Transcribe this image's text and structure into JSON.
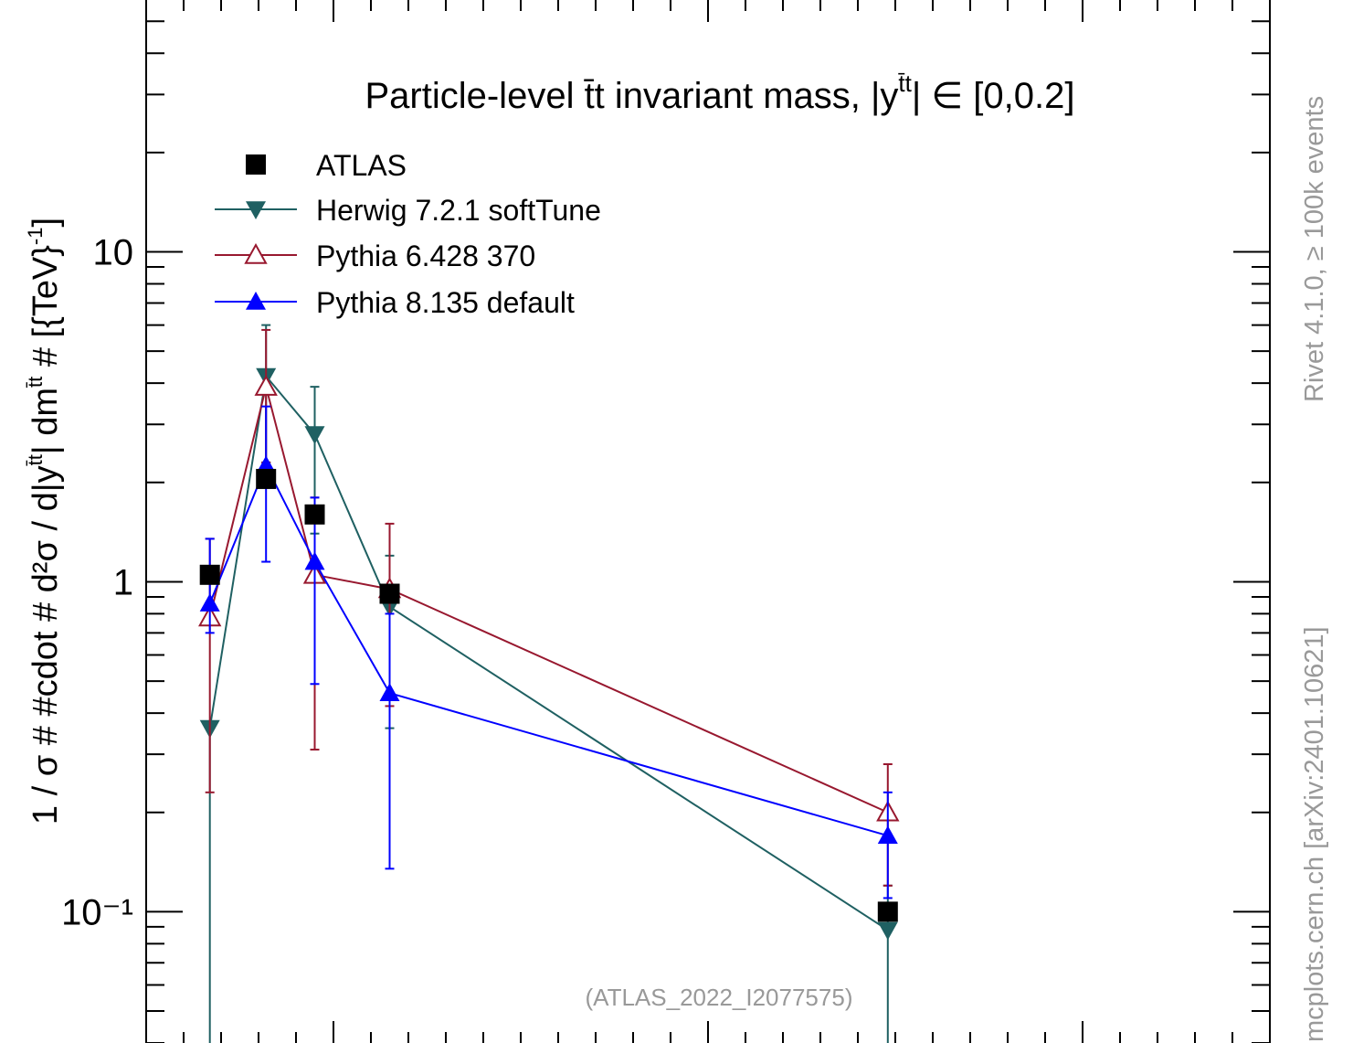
{
  "chart_data": {
    "type": "scatter",
    "title_main": "Particle-level t̄t invariant mass, |y",
    "title_sup": "t̄t",
    "title_end": "| ∈ [0,0.2]",
    "ylabel_main": "1 / σ # #cdot # d²σ / d|y",
    "ylabel_sup1": "t̄t",
    "ylabel_mid": "| dm",
    "ylabel_sup2": "t̄t",
    "ylabel_end": " # [{TeV}",
    "ylabel_sup3": "-1",
    "ylabel_close": "]",
    "yscale": "log",
    "ylim": [
      0.04,
      58
    ],
    "xlim": [
      0.0,
      3.0
    ],
    "ytick_labels": [
      "10⁻¹",
      "1",
      "10"
    ],
    "y_major_ticks": [
      0.1,
      1,
      10
    ],
    "x_major_ticks": [
      0.5,
      1.5,
      2.5
    ],
    "analysis_label": "(ATLAS_2022_I2077575)",
    "side_label_top": "Rivet 4.1.0, ≥ 100k events",
    "side_label_bottom": "mcplots.cern.ch [arXiv:2401.10621]",
    "colors": {
      "atlas": "#000000",
      "herwig": "#1f6062",
      "pythia6": "#98182f",
      "pythia8": "#0000ff",
      "axis": "#000000",
      "watermark": "#999999"
    },
    "series": [
      {
        "name": "ATLAS",
        "marker": "square",
        "line": false,
        "points": [
          {
            "x": 0.17,
            "y": 1.05
          },
          {
            "x": 0.32,
            "y": 2.05
          },
          {
            "x": 0.45,
            "y": 1.6
          },
          {
            "x": 0.65,
            "y": 0.92
          },
          {
            "x": 1.98,
            "y": 0.1
          }
        ]
      },
      {
        "name": "Herwig 7.2.1 softTune",
        "marker": "triangle-down",
        "line": true,
        "points": [
          {
            "x": 0.17,
            "y": 0.36,
            "lo": 0.035,
            "hi": 0.36
          },
          {
            "x": 0.32,
            "y": 4.2,
            "lo": 2.3,
            "hi": 6.0
          },
          {
            "x": 0.45,
            "y": 2.8,
            "lo": 1.4,
            "hi": 3.9
          },
          {
            "x": 0.65,
            "y": 0.84,
            "lo": 0.36,
            "hi": 1.2
          },
          {
            "x": 1.98,
            "y": 0.088,
            "lo": 0.038,
            "hi": 0.12
          }
        ]
      },
      {
        "name": "Pythia 6.428 370",
        "marker": "triangle-up-open",
        "line": true,
        "points": [
          {
            "x": 0.17,
            "y": 0.78,
            "lo": 0.23,
            "hi": 1.35
          },
          {
            "x": 0.32,
            "y": 3.9,
            "lo": 2.3,
            "hi": 5.8
          },
          {
            "x": 0.45,
            "y": 1.05,
            "lo": 0.31,
            "hi": 1.8
          },
          {
            "x": 0.65,
            "y": 0.95,
            "lo": 0.42,
            "hi": 1.5
          },
          {
            "x": 1.98,
            "y": 0.2,
            "lo": 0.12,
            "hi": 0.28
          }
        ]
      },
      {
        "name": "Pythia 8.135 default",
        "marker": "triangle-up",
        "line": true,
        "points": [
          {
            "x": 0.17,
            "y": 0.86,
            "lo": 0.7,
            "hi": 1.35
          },
          {
            "x": 0.32,
            "y": 2.25,
            "lo": 1.15,
            "hi": 3.4
          },
          {
            "x": 0.45,
            "y": 1.15,
            "lo": 0.49,
            "hi": 1.8
          },
          {
            "x": 0.65,
            "y": 0.46,
            "lo": 0.135,
            "hi": 0.8
          },
          {
            "x": 1.98,
            "y": 0.17,
            "lo": 0.11,
            "hi": 0.23
          }
        ]
      }
    ]
  }
}
